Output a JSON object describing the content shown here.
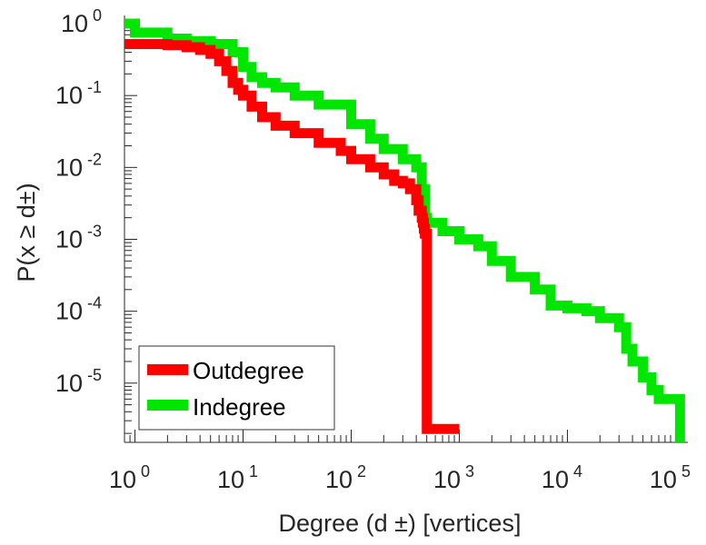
{
  "chart_data": {
    "type": "line",
    "title": "",
    "xlabel": "Degree (d  ±) [vertices]",
    "ylabel": "P(x ≥ d±)",
    "x_scale": "log",
    "y_scale": "log",
    "xlim": [
      0.8,
      130000
    ],
    "ylim": [
      1.5e-06,
      1.3
    ],
    "grid": false,
    "legend_position": "bottom-left",
    "x_ticks": [
      {
        "base": "10",
        "exp": "0"
      },
      {
        "base": "10",
        "exp": "1"
      },
      {
        "base": "10",
        "exp": "2"
      },
      {
        "base": "10",
        "exp": "3"
      },
      {
        "base": "10",
        "exp": "4"
      },
      {
        "base": "10",
        "exp": "5"
      }
    ],
    "y_ticks": [
      {
        "base": "10",
        "exp": "0"
      },
      {
        "base": "10",
        "exp": "-1"
      },
      {
        "base": "10",
        "exp": "-2"
      },
      {
        "base": "10",
        "exp": "-3"
      },
      {
        "base": "10",
        "exp": "-4"
      },
      {
        "base": "10",
        "exp": "-5"
      }
    ],
    "series": [
      {
        "name": "Outdegree",
        "color": "#ff0000",
        "x": [
          0.8,
          1,
          2,
          3,
          4,
          5,
          6,
          7,
          8,
          9,
          10,
          12,
          15,
          20,
          30,
          50,
          80,
          100,
          150,
          200,
          250,
          300,
          350,
          400,
          420,
          450,
          460,
          470,
          480,
          500,
          1000
        ],
        "y": [
          0.52,
          0.52,
          0.5,
          0.47,
          0.43,
          0.38,
          0.3,
          0.22,
          0.15,
          0.12,
          0.1,
          0.07,
          0.05,
          0.038,
          0.03,
          0.022,
          0.017,
          0.013,
          0.01,
          0.008,
          0.0065,
          0.006,
          0.005,
          0.0035,
          0.0025,
          0.002,
          0.0017,
          0.0014,
          0.0012,
          2.3e-06,
          2.3e-06
        ]
      },
      {
        "name": "Indegree",
        "color": "#00e600",
        "x": [
          0.8,
          1,
          2,
          3,
          5,
          8,
          10,
          12,
          15,
          20,
          30,
          50,
          100,
          150,
          200,
          300,
          400,
          450,
          480,
          500,
          700,
          1000,
          1500,
          2000,
          3000,
          5000,
          7000,
          10000,
          15000,
          20000,
          30000,
          35000,
          40000,
          50000,
          60000,
          70000,
          100000,
          110000
        ],
        "y": [
          1,
          0.75,
          0.62,
          0.57,
          0.52,
          0.4,
          0.25,
          0.18,
          0.15,
          0.13,
          0.1,
          0.075,
          0.04,
          0.025,
          0.018,
          0.013,
          0.01,
          0.005,
          0.002,
          0.0017,
          0.0013,
          0.001,
          0.0008,
          0.0005,
          0.0003,
          0.0002,
          0.00012,
          0.00011,
          0.0001,
          8e-05,
          6e-05,
          3e-05,
          2e-05,
          1.2e-05,
          8e-06,
          6e-06,
          6e-06,
          1.5e-06
        ]
      }
    ]
  }
}
